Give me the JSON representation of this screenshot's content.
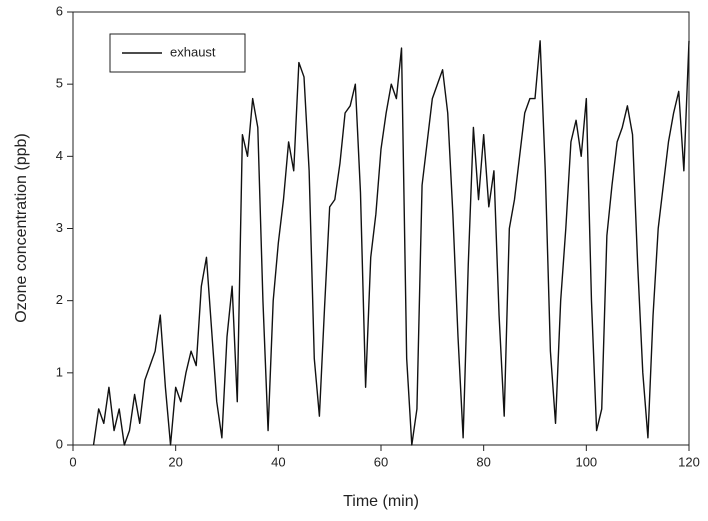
{
  "chart_data": {
    "type": "line",
    "x_label": "Time (min)",
    "y_label": "Ozone concentration (ppb)",
    "xlim": [
      0,
      120
    ],
    "xticks": [
      0,
      20,
      40,
      60,
      80,
      100,
      120
    ],
    "ylim": [
      0,
      6
    ],
    "yticks": [
      0,
      1,
      2,
      3,
      4,
      5,
      6
    ],
    "grid": false,
    "legend": "upper left",
    "x": [
      4,
      5,
      6,
      7,
      8,
      9,
      10,
      11,
      12,
      13,
      14,
      15,
      16,
      17,
      18,
      19,
      20,
      21,
      22,
      23,
      24,
      25,
      26,
      27,
      28,
      29,
      30,
      31,
      32,
      33,
      34,
      35,
      36,
      37,
      38,
      39,
      40,
      41,
      42,
      43,
      44,
      45,
      46,
      47,
      48,
      49,
      50,
      51,
      52,
      53,
      54,
      55,
      56,
      57,
      58,
      59,
      60,
      61,
      62,
      63,
      64,
      65,
      66,
      67,
      68,
      69,
      70,
      71,
      72,
      73,
      74,
      75,
      76,
      77,
      78,
      79,
      80,
      81,
      82,
      83,
      84,
      85,
      86,
      87,
      88,
      89,
      90,
      91,
      92,
      93,
      94,
      95,
      96,
      97,
      98,
      99,
      100,
      101,
      102,
      103,
      104,
      105,
      106,
      107,
      108,
      109,
      110,
      111,
      112,
      113,
      114,
      115,
      116,
      117,
      118,
      119,
      120
    ],
    "series": [
      {
        "name": "exhaust",
        "color": "#111111",
        "values": [
          0.0,
          0.5,
          0.3,
          0.8,
          0.2,
          0.5,
          0.0,
          0.2,
          0.7,
          0.3,
          0.9,
          1.1,
          1.3,
          1.8,
          0.8,
          0.0,
          0.8,
          0.6,
          1.0,
          1.3,
          1.1,
          2.2,
          2.6,
          1.6,
          0.6,
          0.1,
          1.5,
          2.2,
          0.6,
          4.3,
          4.0,
          4.8,
          4.4,
          2.0,
          0.2,
          2.0,
          2.8,
          3.4,
          4.2,
          3.8,
          5.3,
          5.1,
          3.8,
          1.2,
          0.4,
          1.9,
          3.3,
          3.4,
          3.9,
          4.6,
          4.7,
          5.0,
          3.5,
          0.8,
          2.6,
          3.2,
          4.1,
          4.6,
          5.0,
          4.8,
          5.5,
          1.2,
          0.0,
          0.5,
          3.6,
          4.2,
          4.8,
          5.0,
          5.2,
          4.6,
          3.2,
          1.5,
          0.1,
          2.5,
          4.4,
          3.4,
          4.3,
          3.3,
          3.8,
          1.8,
          0.4,
          3.0,
          3.4,
          4.0,
          4.6,
          4.8,
          4.8,
          5.6,
          3.8,
          1.3,
          0.3,
          2.0,
          3.0,
          4.2,
          4.5,
          4.0,
          4.8,
          2.0,
          0.2,
          0.5,
          2.9,
          3.6,
          4.2,
          4.4,
          4.7,
          4.3,
          2.5,
          1.0,
          0.1,
          1.8,
          3.0,
          3.6,
          4.2,
          4.6,
          4.9,
          3.8,
          5.6
        ]
      }
    ]
  }
}
